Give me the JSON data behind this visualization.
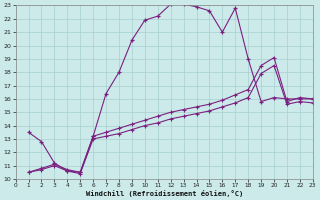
{
  "xlabel": "Windchill (Refroidissement éolien,°C)",
  "background_color": "#cceaea",
  "line_color": "#7b2080",
  "xlim": [
    0,
    23
  ],
  "ylim": [
    10,
    23
  ],
  "xticks": [
    0,
    1,
    2,
    3,
    4,
    5,
    6,
    7,
    8,
    9,
    10,
    11,
    12,
    13,
    14,
    15,
    16,
    17,
    18,
    19,
    20,
    21,
    22,
    23
  ],
  "yticks": [
    10,
    11,
    12,
    13,
    14,
    15,
    16,
    17,
    18,
    19,
    20,
    21,
    22,
    23
  ],
  "line1_x": [
    1,
    2,
    3,
    4,
    5,
    6,
    7,
    8,
    9,
    10,
    11,
    12,
    13,
    14,
    15,
    16,
    17,
    18,
    19,
    20,
    21,
    22,
    23
  ],
  "line1_y": [
    13.5,
    12.8,
    11.2,
    10.6,
    10.5,
    13.2,
    16.4,
    18.0,
    20.4,
    21.9,
    22.2,
    23.1,
    23.1,
    22.9,
    22.6,
    21.0,
    22.8,
    19.0,
    15.8,
    16.1,
    16.0,
    16.0,
    16.0
  ],
  "line2_x": [
    1,
    2,
    3,
    4,
    5,
    6,
    7,
    8,
    9,
    10,
    11,
    12,
    13,
    14,
    15,
    16,
    17,
    18,
    19,
    20,
    21,
    22,
    23
  ],
  "line2_y": [
    10.5,
    10.8,
    11.1,
    10.7,
    10.5,
    13.2,
    13.5,
    13.8,
    14.1,
    14.4,
    14.7,
    15.0,
    15.2,
    15.4,
    15.6,
    15.9,
    16.3,
    16.7,
    18.5,
    19.1,
    15.8,
    16.1,
    16.0
  ],
  "line3_x": [
    1,
    2,
    3,
    4,
    5,
    6,
    7,
    8,
    9,
    10,
    11,
    12,
    13,
    14,
    15,
    16,
    17,
    18,
    19,
    20,
    21,
    22,
    23
  ],
  "line3_y": [
    10.5,
    10.7,
    11.0,
    10.6,
    10.4,
    13.0,
    13.2,
    13.4,
    13.7,
    14.0,
    14.2,
    14.5,
    14.7,
    14.9,
    15.1,
    15.4,
    15.7,
    16.1,
    17.9,
    18.5,
    15.6,
    15.8,
    15.7
  ]
}
